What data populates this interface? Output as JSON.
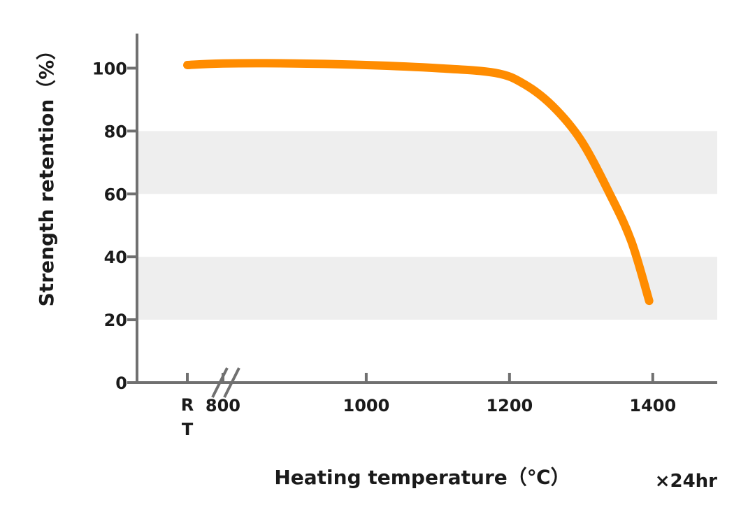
{
  "chart_data": {
    "type": "line",
    "xlabel": "Heating temperature（℃）",
    "ylabel": "Strength retention（%）",
    "note": "×24hr",
    "x_tick_labels": [
      "R",
      "T",
      "800",
      "1000",
      "1200",
      "1400"
    ],
    "x_ticks": [
      800,
      1000,
      1200,
      1400
    ],
    "xlim": [
      680,
      1490
    ],
    "y_ticks": [
      0,
      20,
      40,
      60,
      80,
      100
    ],
    "y_tick_labels": [
      "0",
      "20",
      "40",
      "60",
      "80",
      "100"
    ],
    "ylim": [
      0,
      111
    ],
    "axis_break": true,
    "shaded_bands": [
      [
        20,
        40
      ],
      [
        60,
        80
      ]
    ],
    "series": [
      {
        "color": "#ff8c00",
        "points": [
          {
            "x": "RT",
            "y": 101
          },
          {
            "x": 800,
            "y": 101.5
          },
          {
            "x": 900,
            "y": 101.5
          },
          {
            "x": 1000,
            "y": 101
          },
          {
            "x": 1100,
            "y": 100
          },
          {
            "x": 1180,
            "y": 98.5
          },
          {
            "x": 1220,
            "y": 95
          },
          {
            "x": 1260,
            "y": 88
          },
          {
            "x": 1300,
            "y": 77
          },
          {
            "x": 1340,
            "y": 60
          },
          {
            "x": 1370,
            "y": 45
          },
          {
            "x": 1395,
            "y": 26
          }
        ]
      }
    ]
  }
}
